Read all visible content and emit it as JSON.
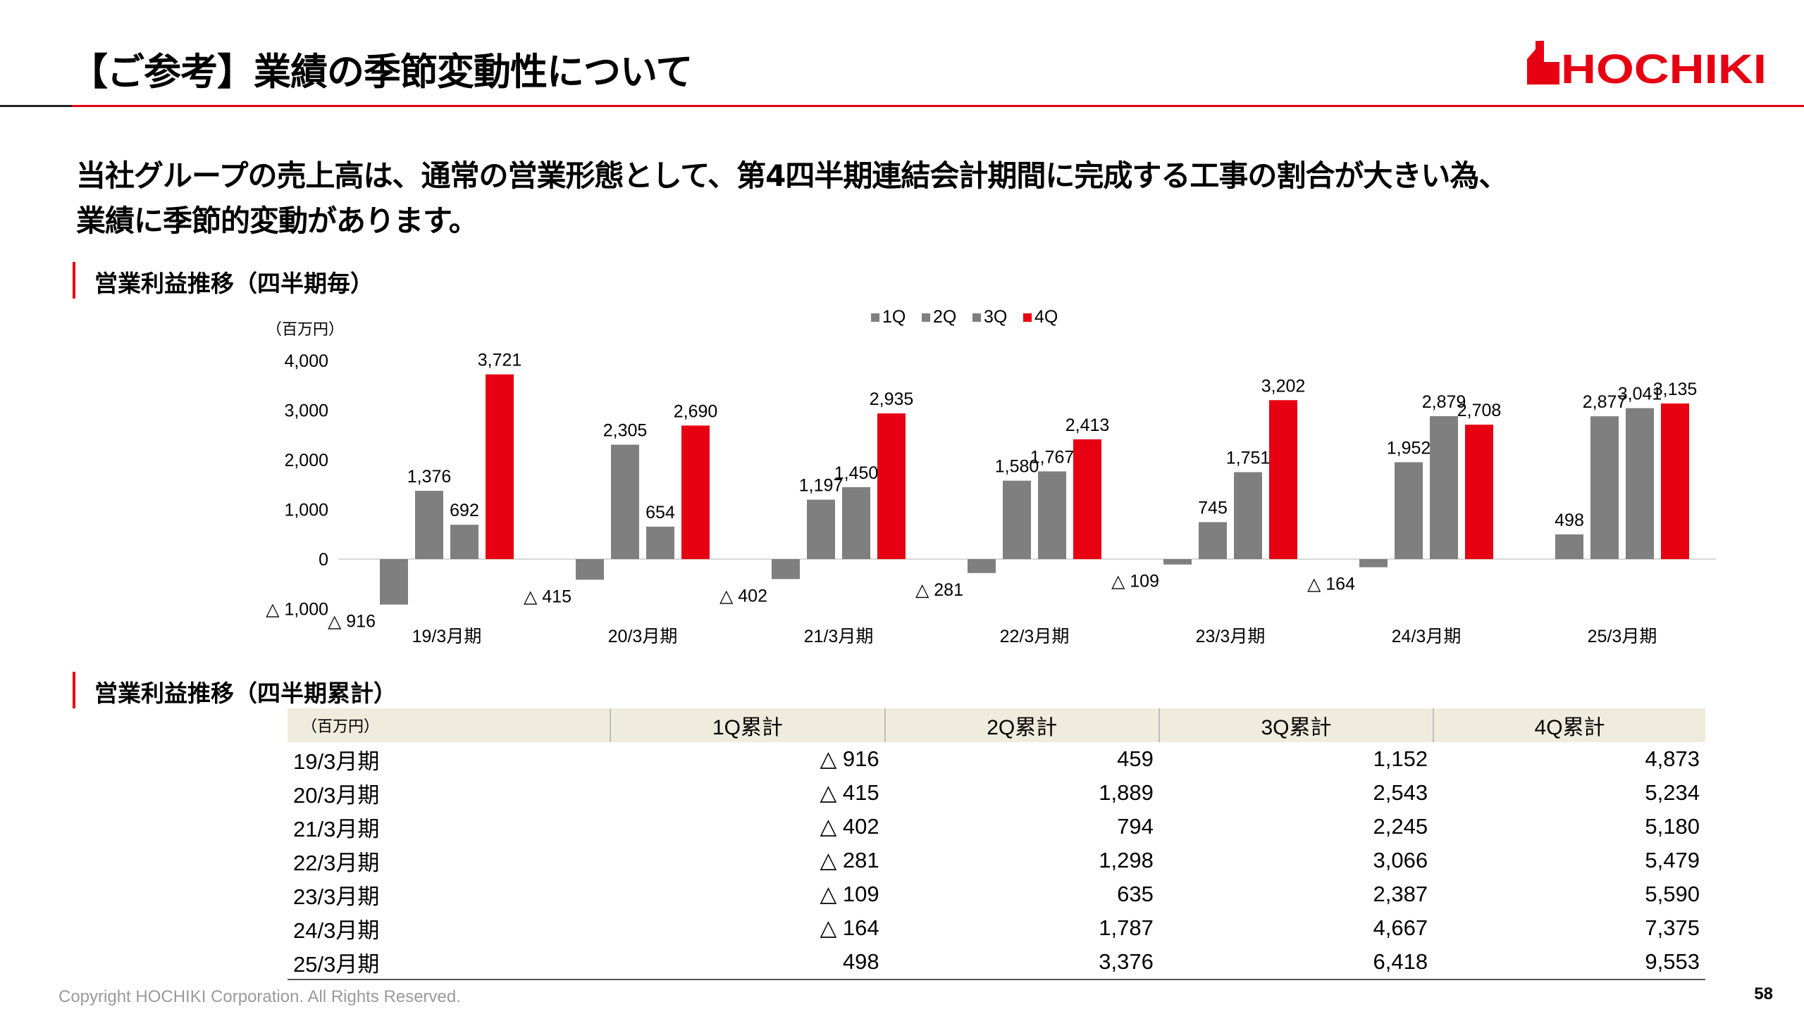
{
  "header": {
    "title": "【ご参考】業績の季節変動性について",
    "logo_text": "HOCHIKI"
  },
  "lead": {
    "line1": "当社グループの売上高は、通常の営業形態として、第4四半期連結会計期間に完成する工事の割合が大きい為、",
    "line2": "業績に季節的変動があります。"
  },
  "section1": {
    "title": "営業利益推移（四半期毎）"
  },
  "section2": {
    "title": "営業利益推移（四半期累計）"
  },
  "colors": {
    "accent": "#e60012",
    "gray": "#7f7f7f",
    "table_header": "#efecde"
  },
  "chart_data": {
    "type": "bar",
    "unit_label": "（百万円）",
    "ylim": [
      -1000,
      4000
    ],
    "yticks": [
      4000,
      3000,
      2000,
      1000,
      0,
      -1000
    ],
    "ytick_labels": [
      "4,000",
      "3,000",
      "2,000",
      "1,000",
      "0",
      "△ 1,000"
    ],
    "categories": [
      "19/3月期",
      "20/3月期",
      "21/3月期",
      "22/3月期",
      "23/3月期",
      "24/3月期",
      "25/3月期"
    ],
    "series": [
      {
        "name": "1Q",
        "color": "#7f7f7f",
        "values": [
          -916,
          -415,
          -402,
          -281,
          -109,
          -164,
          498
        ],
        "labels": [
          "△ 916",
          "△ 415",
          "△ 402",
          "△ 281",
          "△ 109",
          "△ 164",
          "498"
        ]
      },
      {
        "name": "2Q",
        "color": "#7f7f7f",
        "values": [
          1376,
          2305,
          1197,
          1580,
          745,
          1952,
          2877
        ],
        "labels": [
          "1,376",
          "2,305",
          "1,197",
          "1,580",
          "745",
          "1,952",
          "2,877"
        ]
      },
      {
        "name": "3Q",
        "color": "#7f7f7f",
        "values": [
          692,
          654,
          1450,
          1767,
          1751,
          2879,
          3041
        ],
        "labels": [
          "692",
          "654",
          "1,450",
          "1,767",
          "1,751",
          "2,879",
          "3,041"
        ]
      },
      {
        "name": "4Q",
        "color": "#e60012",
        "values": [
          3721,
          2690,
          2935,
          2413,
          3202,
          2708,
          3135
        ],
        "labels": [
          "3,721",
          "2,690",
          "2,935",
          "2,413",
          "3,202",
          "2,708",
          "3,135"
        ]
      }
    ],
    "legend": [
      "1Q",
      "2Q",
      "3Q",
      "4Q"
    ]
  },
  "table": {
    "unit_label": "（百万円）",
    "headers": [
      "1Q累計",
      "2Q累計",
      "3Q累計",
      "4Q累計"
    ],
    "rows": [
      [
        "19/3月期",
        "△ 916",
        "459",
        "1,152",
        "4,873"
      ],
      [
        "20/3月期",
        "△ 415",
        "1,889",
        "2,543",
        "5,234"
      ],
      [
        "21/3月期",
        "△ 402",
        "794",
        "2,245",
        "5,180"
      ],
      [
        "22/3月期",
        "△ 281",
        "1,298",
        "3,066",
        "5,479"
      ],
      [
        "23/3月期",
        "△ 109",
        "635",
        "2,387",
        "5,590"
      ],
      [
        "24/3月期",
        "△ 164",
        "1,787",
        "4,667",
        "7,375"
      ],
      [
        "25/3月期",
        "498",
        "3,376",
        "6,418",
        "9,553"
      ]
    ]
  },
  "footer": {
    "copyright": "Copyright HOCHIKI Corporation. All Rights Reserved.",
    "page": "58"
  }
}
